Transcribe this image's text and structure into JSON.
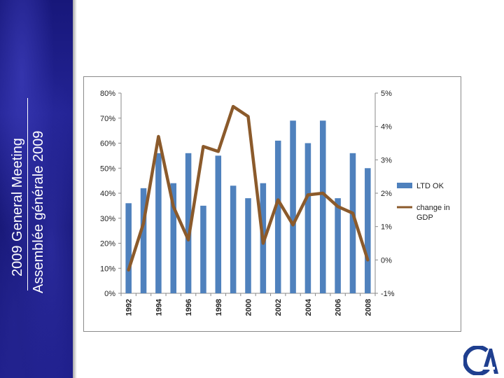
{
  "slide": {
    "title_en": "2009 General Meeting",
    "title_fr": "Assemblée générale 2009",
    "logo_label": "CIA"
  },
  "colors": {
    "bar": "#4f81bd",
    "line": "#8b5a2b",
    "sidebar": "#1c1c88"
  },
  "chart_data": {
    "type": "bar",
    "categories": [
      "1992",
      "1993",
      "1994",
      "1995",
      "1996",
      "1997",
      "1998",
      "1999",
      "2000",
      "2001",
      "2002",
      "2003",
      "2004",
      "2005",
      "2006",
      "2007",
      "2008"
    ],
    "x_tick_labels": [
      "1992",
      "1994",
      "1996",
      "1998",
      "2000",
      "2002",
      "2004",
      "2006",
      "2008"
    ],
    "series": [
      {
        "name": "LTD OK",
        "type": "bar",
        "axis": "left",
        "values": [
          36,
          42,
          56,
          44,
          56,
          35,
          55,
          43,
          38,
          44,
          61,
          69,
          60,
          69,
          38,
          56,
          50
        ]
      },
      {
        "name": "change in GDP",
        "type": "line",
        "axis": "right",
        "values": [
          -0.3,
          1.1,
          3.7,
          1.6,
          0.6,
          3.4,
          3.25,
          4.6,
          4.3,
          0.5,
          1.8,
          1.05,
          1.95,
          2.0,
          1.6,
          1.4,
          0.0
        ]
      }
    ],
    "left_axis": {
      "ylim": [
        0,
        80
      ],
      "ticks": [
        0,
        10,
        20,
        30,
        40,
        50,
        60,
        70,
        80
      ],
      "tick_labels": [
        "0%",
        "10%",
        "20%",
        "30%",
        "40%",
        "50%",
        "60%",
        "70%",
        "80%"
      ]
    },
    "right_axis": {
      "ylim": [
        -1,
        5
      ],
      "ticks": [
        -1,
        0,
        1,
        2,
        3,
        4,
        5
      ],
      "tick_labels": [
        "-1%",
        "0%",
        "1%",
        "2%",
        "3%",
        "4%",
        "5%"
      ]
    },
    "legend": {
      "position": "right",
      "entries": [
        "LTD OK",
        "change in GDP"
      ]
    },
    "title": "",
    "xlabel": "",
    "ylabel": "",
    "grid": false
  }
}
